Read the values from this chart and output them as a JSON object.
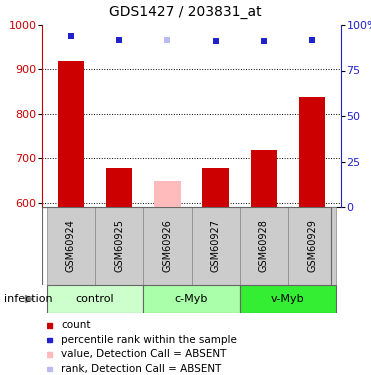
{
  "title": "GDS1427 / 203831_at",
  "samples": [
    "GSM60924",
    "GSM60925",
    "GSM60926",
    "GSM60927",
    "GSM60928",
    "GSM60929"
  ],
  "bar_values": [
    918,
    678,
    648,
    678,
    718,
    838
  ],
  "bar_colors": [
    "#cc0000",
    "#cc0000",
    "#ffbbbb",
    "#cc0000",
    "#cc0000",
    "#cc0000"
  ],
  "rank_values": [
    94,
    92,
    92,
    91,
    91,
    92
  ],
  "rank_colors": [
    "#2222cc",
    "#2222cc",
    "#bbbbee",
    "#2222cc",
    "#2222cc",
    "#2222cc"
  ],
  "ylim_left": [
    590,
    1000
  ],
  "ylim_right": [
    0,
    100
  ],
  "yticks_left": [
    600,
    700,
    800,
    900,
    1000
  ],
  "yticks_right": [
    0,
    25,
    50,
    75,
    100
  ],
  "yticklabels_right": [
    "0",
    "25",
    "50",
    "75",
    "100%"
  ],
  "groups": [
    {
      "label": "control",
      "indices": [
        0,
        1
      ],
      "color": "#ccffcc"
    },
    {
      "label": "c-Myb",
      "indices": [
        2,
        3
      ],
      "color": "#aaffaa"
    },
    {
      "label": "v-Myb",
      "indices": [
        4,
        5
      ],
      "color": "#33ee33"
    }
  ],
  "infection_label": "infection",
  "legend_items": [
    {
      "color": "#cc0000",
      "label": "count"
    },
    {
      "color": "#2222cc",
      "label": "percentile rank within the sample"
    },
    {
      "color": "#ffbbbb",
      "label": "value, Detection Call = ABSENT"
    },
    {
      "color": "#bbbbee",
      "label": "rank, Detection Call = ABSENT"
    }
  ],
  "bar_width": 0.55,
  "bg_color": "#ffffff",
  "plot_bg": "#ffffff",
  "grid_color": "#000000",
  "label_row_bg": "#cccccc",
  "title_fontsize": 10,
  "tick_fontsize": 8,
  "sample_fontsize": 7,
  "group_fontsize": 8,
  "legend_fontsize": 7.5,
  "infection_fontsize": 8
}
